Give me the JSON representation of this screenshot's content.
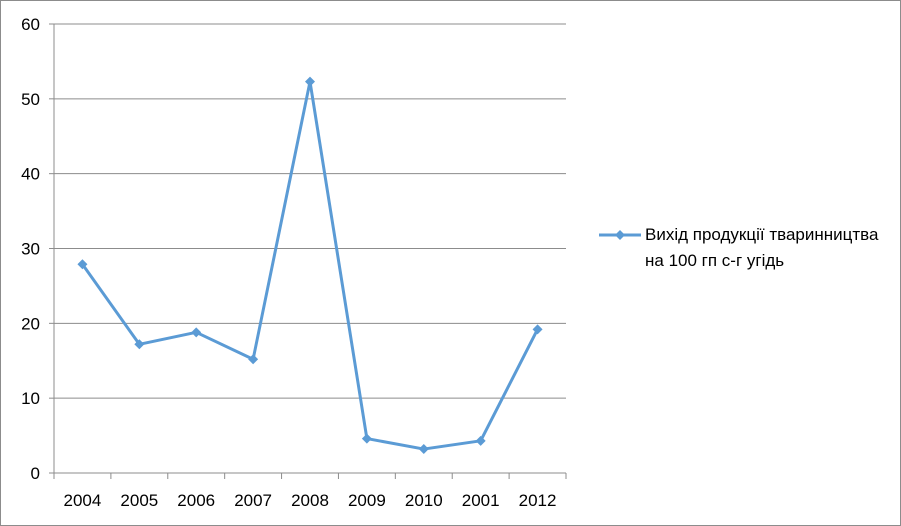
{
  "chart_data": {
    "type": "line",
    "categories": [
      "2004",
      "2005",
      "2006",
      "2007",
      "2008",
      "2009",
      "2010",
      "2001",
      "2012"
    ],
    "series": [
      {
        "name": "Вихід продукції тваринництва на 100 гп с-г угідь",
        "values": [
          27.9,
          17.2,
          18.8,
          15.2,
          52.3,
          4.6,
          3.2,
          4.3,
          19.2
        ],
        "color": "#5b9bd5"
      }
    ],
    "title": "",
    "xlabel": "",
    "ylabel": "",
    "ylim": [
      0,
      60
    ],
    "yticks": [
      0,
      10,
      20,
      30,
      40,
      50,
      60
    ],
    "grid": true,
    "legend_position": "right",
    "marker": "diamond"
  }
}
